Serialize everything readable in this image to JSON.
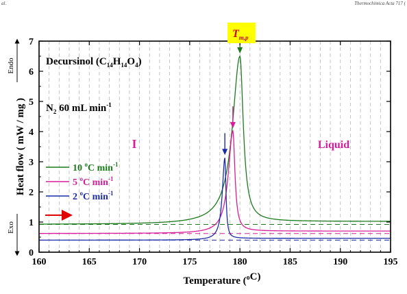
{
  "header": {
    "left": "al.",
    "right": "Thermochimica Acta 717 ("
  },
  "chart_data": {
    "type": "line",
    "xlabel": "Temperature",
    "xlabel_unit": "°C",
    "ylabel": "Heat flow",
    "ylabel_unit": "mW / mg",
    "xlim": [
      160,
      195
    ],
    "ylim": [
      0,
      7
    ],
    "xticks": [
      160,
      165,
      170,
      175,
      180,
      185,
      190,
      195
    ],
    "yticks": [
      0,
      1,
      2,
      3,
      4,
      5,
      6,
      7
    ],
    "grid": "vertical dashed every 1 °C",
    "compound": {
      "name": "Decursinol",
      "formula_C": "14",
      "formula_H": "14",
      "formula_O": "4"
    },
    "atmosphere": {
      "gas": "N",
      "gas_sub": "2",
      "rate": "60 mL min",
      "rate_exp": "-1"
    },
    "region_labels": {
      "solid": "I",
      "liquid": "Liquid"
    },
    "peak_label": {
      "main": "T",
      "sub": "m,p",
      "color": "#cc0000",
      "background": "#ffff00"
    },
    "direction_labels": {
      "up": "Endo",
      "down": "Exo"
    },
    "legend_position": "left-middle",
    "series": [
      {
        "name": "10 °C min-1",
        "name_main": "10 ",
        "name_exp1": "o",
        "name_mid": "C min",
        "name_exp2": "-1",
        "color": "#1a7a1a",
        "baseline": 0.92,
        "plateau": 1.02,
        "peak_x": 180.0,
        "peak_y": 6.5,
        "width": 0.9
      },
      {
        "name": "5 °C min-1",
        "name_main": "5 ",
        "name_exp1": "o",
        "name_mid": "C min",
        "name_exp2": "-1",
        "color": "#d81b9a",
        "baseline": 0.62,
        "plateau": 0.7,
        "peak_x": 179.3,
        "peak_y": 4.02,
        "width": 0.55
      },
      {
        "name": "2 °C min-1",
        "name_main": "2 ",
        "name_exp1": "o",
        "name_mid": "C min",
        "name_exp2": "-1",
        "color": "#1a2aa8",
        "baseline": 0.4,
        "plateau": 0.46,
        "peak_x": 178.5,
        "peak_y": 3.13,
        "width": 0.3
      }
    ],
    "arrow_color": "#e00000"
  }
}
